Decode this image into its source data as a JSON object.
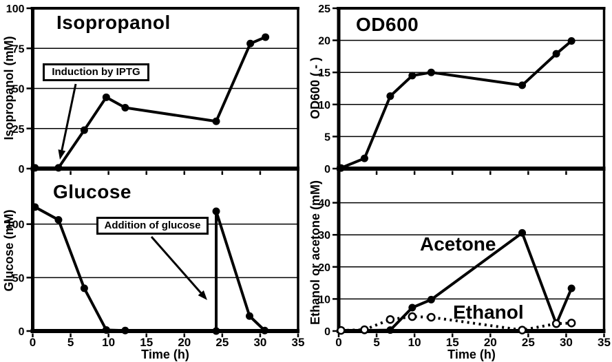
{
  "figure": {
    "background": "#ffffff",
    "foreground": "#000000"
  },
  "x_axis": {
    "label": "Time (h)",
    "range": [
      0,
      35
    ],
    "ticks": [
      0,
      5,
      10,
      15,
      20,
      25,
      30,
      35
    ]
  },
  "chart_data": [
    {
      "id": "isopropanol",
      "type": "line",
      "title": "Isopropanol",
      "ylabel": "Isopropanol (mM)",
      "xlabel": "Time (h)",
      "xlim": [
        0,
        35
      ],
      "xticks": [
        0,
        5,
        10,
        15,
        20,
        25,
        30,
        35
      ],
      "ylim": [
        0,
        100
      ],
      "yticks": [
        0,
        25,
        50,
        75,
        100
      ],
      "gridlines": [
        25,
        50,
        75
      ],
      "series": [
        {
          "name": "Isopropanol",
          "marker": "filled-circle",
          "line": "solid",
          "x": [
            0.3,
            3.4,
            6.8,
            9.7,
            12.2,
            24.2,
            28.7,
            30.7
          ],
          "y": [
            0.5,
            0.5,
            24,
            44.5,
            38,
            29.5,
            78,
            82
          ]
        }
      ],
      "annotation": {
        "text": "Induction by IPTG"
      }
    },
    {
      "id": "od600",
      "type": "line",
      "title": "OD600",
      "ylabel": "OD600 ( - )",
      "xlabel": "Time (h)",
      "xlim": [
        0,
        35
      ],
      "xticks": [
        0,
        5,
        10,
        15,
        20,
        25,
        30,
        35
      ],
      "ylim": [
        0,
        25
      ],
      "yticks": [
        0,
        5,
        10,
        15,
        20,
        25
      ],
      "gridlines": [
        5,
        10,
        15,
        20
      ],
      "series": [
        {
          "name": "OD600",
          "marker": "filled-circle",
          "line": "solid",
          "x": [
            0.3,
            3.4,
            6.8,
            9.7,
            12.2,
            24.2,
            28.7,
            30.7
          ],
          "y": [
            0.1,
            1.6,
            11.3,
            14.5,
            15,
            13,
            17.9,
            19.9
          ]
        }
      ]
    },
    {
      "id": "glucose",
      "type": "line",
      "title": "Glucose",
      "ylabel": "Glucose (mM)",
      "xlabel": "Time (h)",
      "xlim": [
        0,
        35
      ],
      "xticks": [
        0,
        5,
        10,
        15,
        20,
        25,
        30,
        35
      ],
      "ylim": [
        0,
        150
      ],
      "yticks": [
        0,
        50,
        100
      ],
      "gridlines": [
        50,
        100
      ],
      "series": [
        {
          "name": "Glucose",
          "marker": "filled-circle",
          "line": "solid",
          "x": [
            0.3,
            3.4,
            6.8,
            9.7,
            12.2,
            24.2,
            24.2,
            28.6,
            30.6
          ],
          "y": [
            116,
            104,
            40,
            1,
            0.5,
            0,
            112,
            14,
            0.5
          ]
        }
      ],
      "annotation": {
        "text": "Addition of glucose"
      }
    },
    {
      "id": "ethanol-acetone",
      "type": "line",
      "title": "",
      "ylabel": "Ethanol or acetone (mM)",
      "xlabel": "Time (h)",
      "xlim": [
        0,
        35
      ],
      "xticks": [
        0,
        5,
        10,
        15,
        20,
        25,
        30,
        35
      ],
      "ylim": [
        0,
        50
      ],
      "yticks": [
        0,
        10,
        20,
        30,
        40
      ],
      "gridlines": [
        10,
        20,
        30,
        40
      ],
      "series": [
        {
          "name": "Acetone",
          "marker": "filled-circle",
          "line": "solid",
          "x": [
            0.3,
            3.4,
            6.8,
            9.7,
            12.2,
            24.2,
            28.7,
            30.7
          ],
          "y": [
            0.1,
            0.2,
            0.3,
            7.3,
            9.8,
            30.6,
            2.2,
            13.3
          ]
        },
        {
          "name": "Ethanol",
          "marker": "open-circle",
          "line": "dotted",
          "x": [
            0.3,
            3.4,
            6.8,
            9.7,
            12.2,
            24.2,
            28.7,
            30.7
          ],
          "y": [
            0.2,
            0.4,
            3.6,
            4.5,
            4.3,
            0.3,
            2.3,
            2.5
          ]
        }
      ]
    }
  ]
}
